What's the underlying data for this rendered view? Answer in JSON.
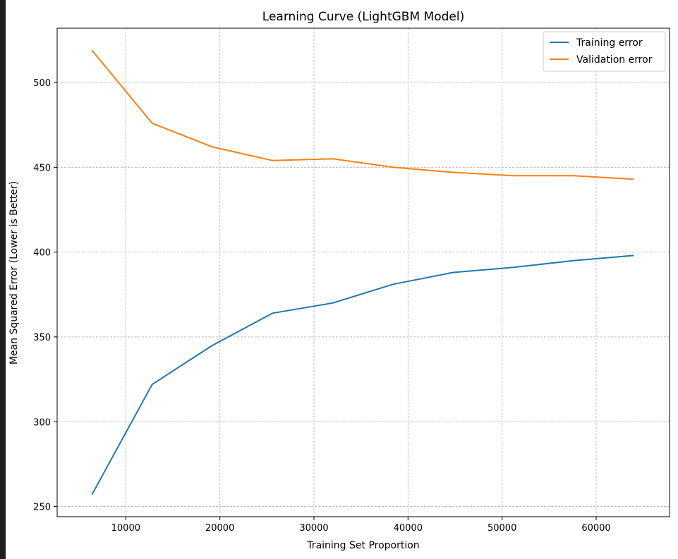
{
  "chart_data": {
    "type": "line",
    "title": "Learning Curve (LightGBM Model)",
    "xlabel": "Training Set Proportion",
    "ylabel": "Mean Squared Error (Lower is Better)",
    "xlim": [
      2700,
      67800
    ],
    "ylim": [
      244,
      532
    ],
    "xticks": [
      10000,
      20000,
      30000,
      40000,
      50000,
      60000
    ],
    "yticks": [
      250,
      300,
      350,
      400,
      450,
      500
    ],
    "grid": true,
    "grid_style": "dashed",
    "legend_position": "top-right",
    "x": [
      6400,
      12800,
      19200,
      25600,
      32000,
      38400,
      44800,
      51200,
      57600,
      64000
    ],
    "series": [
      {
        "name": "Training error",
        "color": "#1f77b4",
        "values": [
          257,
          322,
          345,
          364,
          370,
          381,
          388,
          391,
          395,
          398
        ]
      },
      {
        "name": "Validation error",
        "color": "#ff7f0e",
        "values": [
          519,
          476,
          462,
          454,
          455,
          450,
          447,
          445,
          445,
          443
        ]
      }
    ]
  }
}
